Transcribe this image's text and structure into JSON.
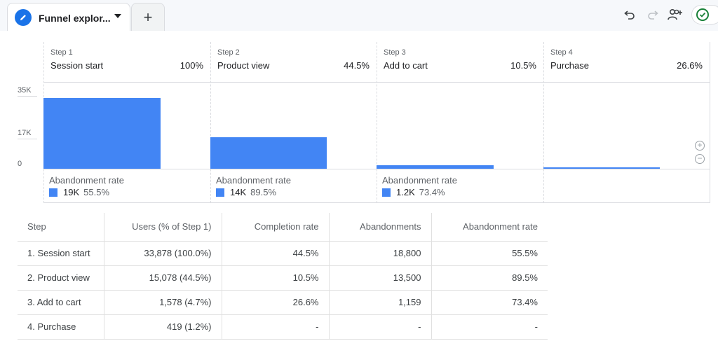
{
  "tab": {
    "title": "Funnel explor...",
    "add_label": "+"
  },
  "toolbar": {
    "undo_icon": "undo-icon",
    "redo_icon": "redo-icon",
    "share_icon": "person-add-icon",
    "status_icon": "check-circle-icon"
  },
  "colors": {
    "accent": "#4285f4",
    "brand": "#1a73e8",
    "ok": "#188038"
  },
  "chart_data": {
    "type": "bar",
    "categories": [
      "Session start",
      "Product view",
      "Add to cart",
      "Purchase"
    ],
    "values": [
      33878,
      15078,
      1578,
      419
    ],
    "ylim": [
      0,
      35000
    ],
    "y_ticks": [
      "35K",
      "17K",
      "0"
    ],
    "steps": [
      {
        "step": "Step 1",
        "name": "Session start",
        "pct": "100%",
        "ab_label": "Abandonment rate",
        "ab_count": "19K",
        "ab_rate": "55.5%"
      },
      {
        "step": "Step 2",
        "name": "Product view",
        "pct": "44.5%",
        "ab_label": "Abandonment rate",
        "ab_count": "14K",
        "ab_rate": "89.5%"
      },
      {
        "step": "Step 3",
        "name": "Add to cart",
        "pct": "10.5%",
        "ab_label": "Abandonment rate",
        "ab_count": "1.2K",
        "ab_rate": "73.4%"
      },
      {
        "step": "Step 4",
        "name": "Purchase",
        "pct": "26.6%",
        "ab_label": "",
        "ab_count": "",
        "ab_rate": ""
      }
    ]
  },
  "table": {
    "headers": [
      "Step",
      "Users (% of Step 1)",
      "Completion rate",
      "Abandonments",
      "Abandonment rate"
    ],
    "rows": [
      [
        "1. Session start",
        "33,878 (100.0%)",
        "44.5%",
        "18,800",
        "55.5%"
      ],
      [
        "2. Product view",
        "15,078 (44.5%)",
        "10.5%",
        "13,500",
        "89.5%"
      ],
      [
        "3. Add to cart",
        "1,578 (4.7%)",
        "26.6%",
        "1,159",
        "73.4%"
      ],
      [
        "4. Purchase",
        "419 (1.2%)",
        "-",
        "-",
        "-"
      ]
    ]
  }
}
